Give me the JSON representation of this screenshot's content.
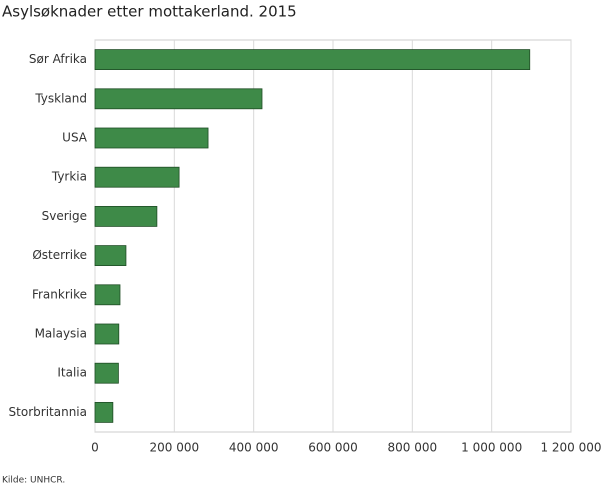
{
  "chart_data": {
    "type": "hbar",
    "title": "Asylsøknader etter mottakerland. 2015",
    "categories": [
      "Sør Afrika",
      "Tyskland",
      "USA",
      "Tyrkia",
      "Sverige",
      "Østerrike",
      "Frankrike",
      "Malaysia",
      "Italia",
      "Storbritannia"
    ],
    "values": [
      1096000,
      421000,
      285000,
      212000,
      156000,
      78000,
      63000,
      60000,
      59000,
      45000
    ],
    "color": "#3e8a48",
    "xlim": [
      0,
      1200000
    ],
    "xticks": [
      0,
      {
        "value": 200000,
        "label": "200 000"
      },
      {
        "value": 400000,
        "label": "400 000"
      },
      {
        "value": 600000,
        "label": "600 000"
      },
      {
        "value": 800000,
        "label": "800 000"
      },
      {
        "value": 1000000,
        "label": "1 000 000"
      },
      {
        "value": 1200000,
        "label": "1 200 000"
      }
    ],
    "grid": true,
    "source": "Kilde: UNHCR."
  }
}
